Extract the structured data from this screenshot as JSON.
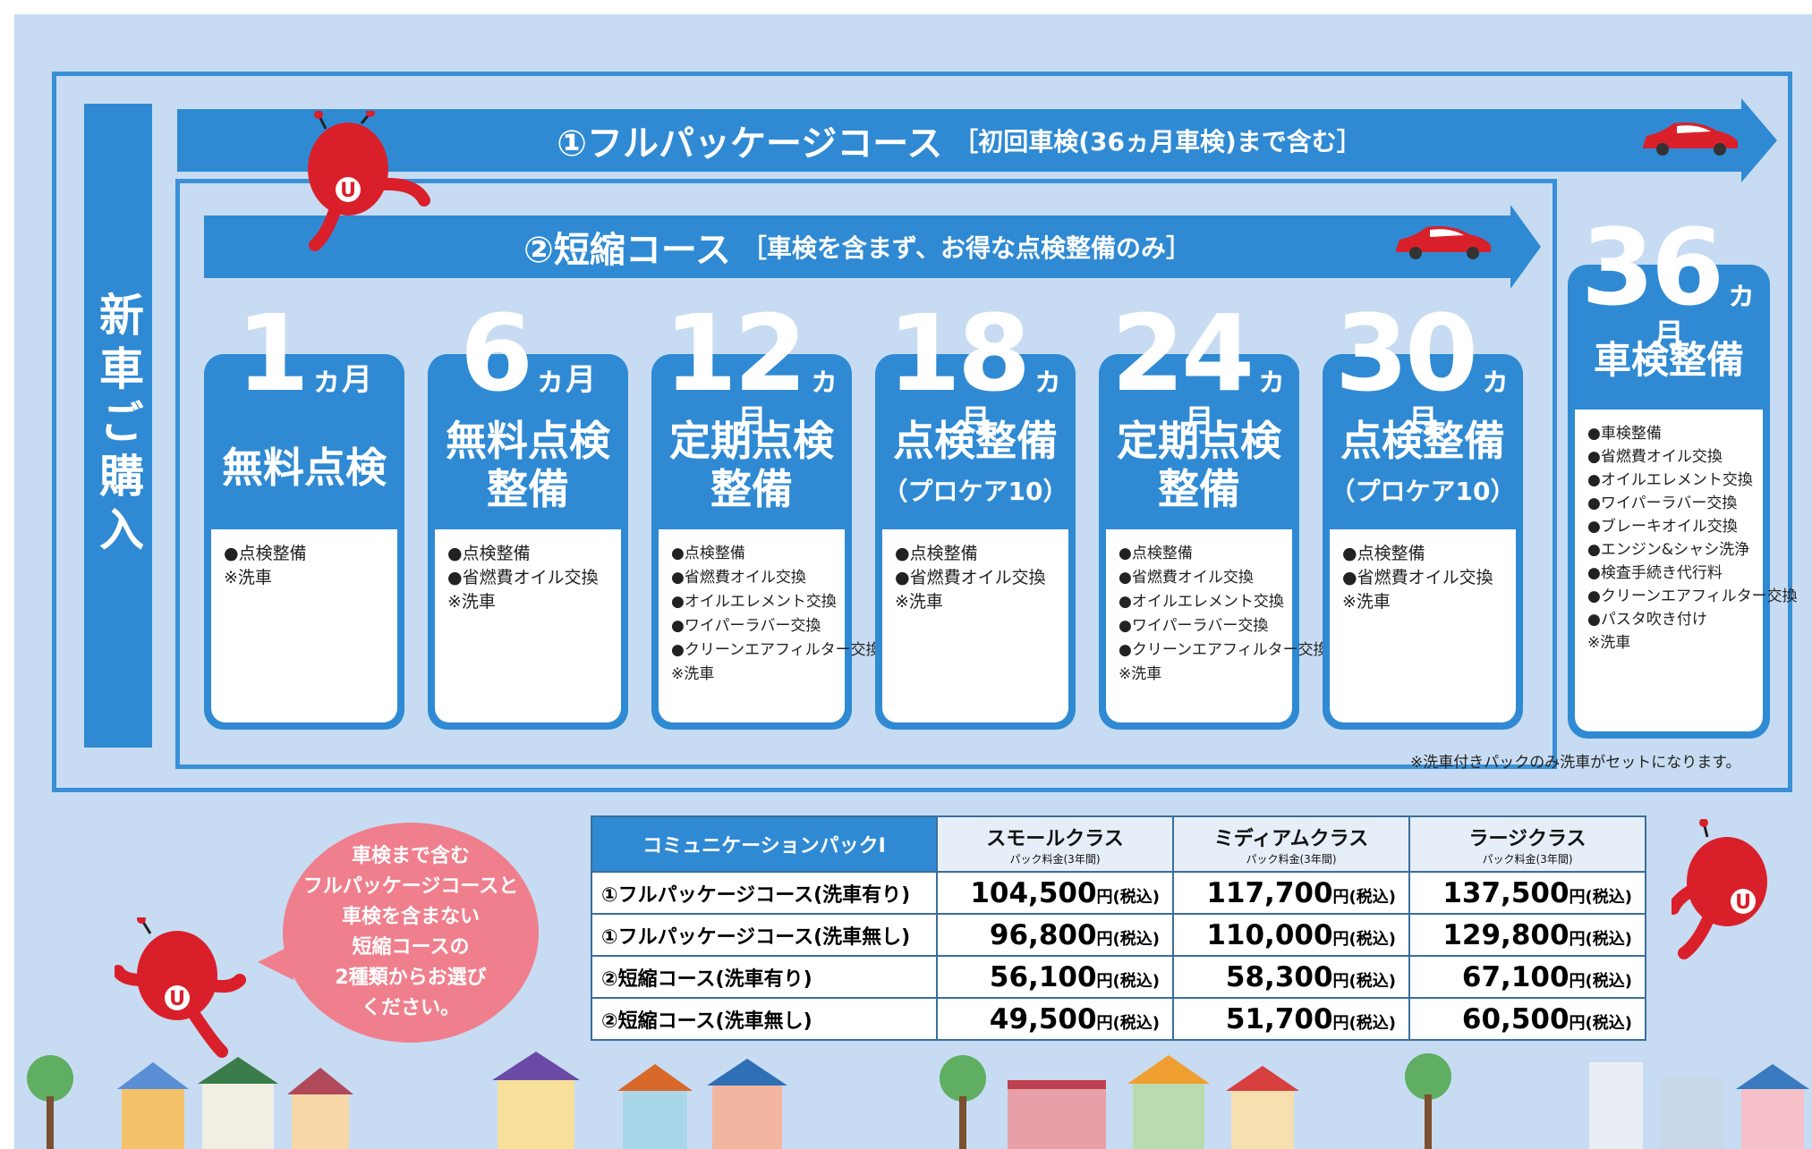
{
  "vertical_label": "新車ご購入",
  "full_course": {
    "title": "①フルパッケージコース",
    "subtitle": "［初回車検(36ヵ月車検)まで含む］"
  },
  "short_course": {
    "title": "②短縮コース",
    "subtitle": "［車検を含まず、お得な点検整備のみ］"
  },
  "cards": [
    {
      "num": "1",
      "unit": "ヵ月",
      "title": "無料点検",
      "subtitle": "",
      "items": [
        "●点検整備",
        "※洗車"
      ]
    },
    {
      "num": "6",
      "unit": "ヵ月",
      "title": "無料点検\n整備",
      "subtitle": "",
      "items": [
        "●点検整備",
        "●省燃費オイル交換",
        "※洗車"
      ]
    },
    {
      "num": "12",
      "unit": "ヵ月",
      "title": "定期点検\n整備",
      "subtitle": "",
      "items": [
        "●点検整備",
        "●省燃費オイル交換",
        "●オイルエレメント交換",
        "●ワイパーラバー交換",
        "●クリーンエアフィルター交換",
        "※洗車"
      ]
    },
    {
      "num": "18",
      "unit": "ヵ月",
      "title": "点検整備",
      "subtitle": "（プロケア10）",
      "items": [
        "●点検整備",
        "●省燃費オイル交換",
        "※洗車"
      ]
    },
    {
      "num": "24",
      "unit": "ヵ月",
      "title": "定期点検\n整備",
      "subtitle": "",
      "items": [
        "●点検整備",
        "●省燃費オイル交換",
        "●オイルエレメント交換",
        "●ワイパーラバー交換",
        "●クリーンエアフィルター交換",
        "※洗車"
      ]
    },
    {
      "num": "30",
      "unit": "ヵ月",
      "title": "点検整備",
      "subtitle": "（プロケア10）",
      "items": [
        "●点検整備",
        "●省燃費オイル交換",
        "※洗車"
      ]
    },
    {
      "num": "36",
      "unit": "ヵ月",
      "title": "車検整備",
      "subtitle": "",
      "items": [
        "●車検整備",
        "●省燃費オイル交換",
        "●オイルエレメント交換",
        "●ワイパーラバー交換",
        "●ブレーキオイル交換",
        "●エンジン&シャシ洗浄",
        "●検査手続き代行料",
        "●クリーンエアフィルター交換",
        "●パスタ吹き付け",
        "※洗車"
      ]
    }
  ],
  "footnote": "※洗車付きパックのみ洗車がセットになります。",
  "bubble": [
    "車検まで含む",
    "フルパッケージコースと",
    "車検を含まない",
    "短縮コースの",
    "2種類からお選び",
    "ください。"
  ],
  "table": {
    "corner": "コミュニケーションパックⅠ",
    "columns": [
      {
        "name": "スモールクラス",
        "note": "パック料金(3年間)"
      },
      {
        "name": "ミディアムクラス",
        "note": "パック料金(3年間)"
      },
      {
        "name": "ラージクラス",
        "note": "パック料金(3年間)"
      }
    ],
    "yen_suffix": "円(税込)",
    "rows": [
      {
        "label": "①フルパッケージコース(洗車有り)",
        "prices": [
          "104,500",
          "117,700",
          "137,500"
        ]
      },
      {
        "label": "①フルパッケージコース(洗車無し)",
        "prices": [
          "96,800",
          "110,000",
          "129,800"
        ]
      },
      {
        "label": "②短縮コース(洗車有り)",
        "prices": [
          "56,100",
          "58,300",
          "67,100"
        ]
      },
      {
        "label": "②短縮コース(洗車無し)",
        "prices": [
          "49,500",
          "51,700",
          "60,500"
        ]
      }
    ]
  },
  "mascot_badge": "U",
  "colors": {
    "primary": "#2f8ad3",
    "background": "#c7dcf2",
    "bubble": "#f07f8d",
    "mascot": "#d9202a"
  }
}
